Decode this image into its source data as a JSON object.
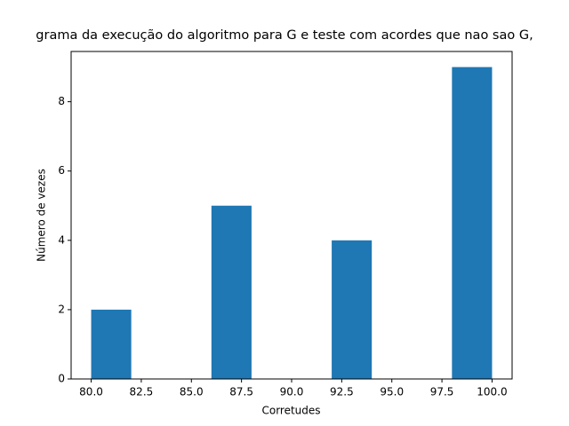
{
  "chart_data": {
    "type": "histogram",
    "title": "grama da execução do algoritmo para G e teste com acordes que nao sao G,",
    "x_label": "Corretudes",
    "y_label": "Número de vezes",
    "bins": [
      80,
      82,
      84,
      86,
      88,
      90,
      92,
      94,
      96,
      98,
      100
    ],
    "values": [
      2,
      0,
      0,
      5,
      0,
      0,
      4,
      0,
      0,
      9
    ],
    "color": "#1f77b4",
    "xlim": [
      79,
      101
    ],
    "xticks": [
      {
        "value": 80,
        "label": "80.0"
      },
      82.5,
      {
        "value": 85,
        "label": "85.0"
      },
      87.5,
      {
        "value": 90,
        "label": "90.0"
      },
      92.5,
      {
        "value": 95,
        "label": "95.0"
      },
      97.5,
      {
        "value": 100,
        "label": "100.0"
      }
    ],
    "ylim": [
      0,
      9.45
    ],
    "yticks": [
      0,
      2,
      4,
      6,
      8
    ]
  }
}
